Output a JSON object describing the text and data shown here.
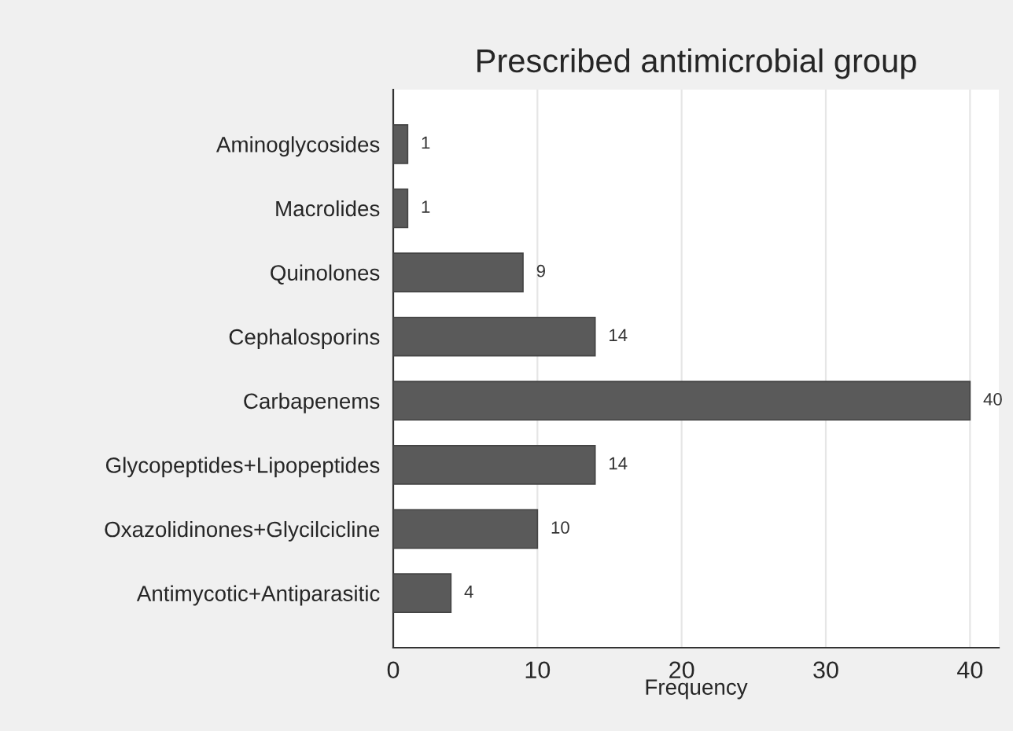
{
  "chart_data": {
    "type": "bar",
    "orientation": "horizontal",
    "title": "Prescribed antimicrobial group",
    "xlabel": "Frequency",
    "categories": [
      "Aminoglycosides",
      "Macrolides",
      "Quinolones",
      "Cephalosporins",
      "Carbapenems",
      "Glycopeptides+Lipopeptides",
      "Oxazolidinones+Glycilcicline",
      "Antimycotic+Antiparasitic"
    ],
    "values": [
      1,
      1,
      9,
      14,
      40,
      14,
      10,
      4
    ],
    "color": "#5a5a5a",
    "data_labels": true,
    "xlim": [
      0,
      42
    ],
    "xticks": [
      0,
      10,
      20,
      30,
      40
    ],
    "grid": "x",
    "legend": false
  }
}
